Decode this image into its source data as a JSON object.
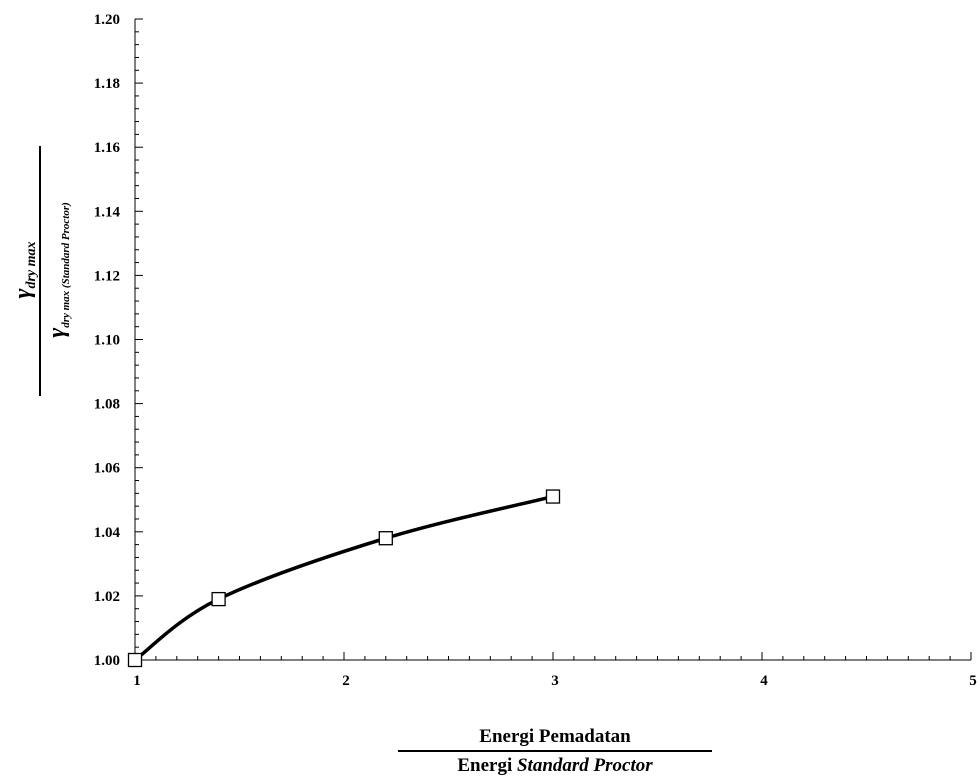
{
  "chart_data": {
    "type": "line",
    "x": [
      1.0,
      1.4,
      2.2,
      3.0
    ],
    "series": [
      {
        "y": [
          1.0,
          1.019,
          1.038,
          1.051
        ],
        "marker": "open-square",
        "line": "smooth",
        "color": "#000000"
      }
    ],
    "xlim": [
      1,
      5
    ],
    "ylim": [
      1.0,
      1.2
    ],
    "xticks": [
      "1",
      "2",
      "3",
      "4",
      "5"
    ],
    "yticks": [
      "1.00",
      "1.02",
      "1.04",
      "1.06",
      "1.08",
      "1.10",
      "1.12",
      "1.14",
      "1.16",
      "1.18",
      "1.20"
    ],
    "xlabel": {
      "numerator": "Energi Pemadatan",
      "denominator_prefix": "Energi ",
      "denominator_italic": "Standard Proctor"
    },
    "ylabel": {
      "numerator": "γ",
      "numerator_sub": "dry max",
      "denominator": "γ",
      "denominator_sub": "dry max (Standard Proctor)"
    },
    "grid": false,
    "legend": "none"
  }
}
